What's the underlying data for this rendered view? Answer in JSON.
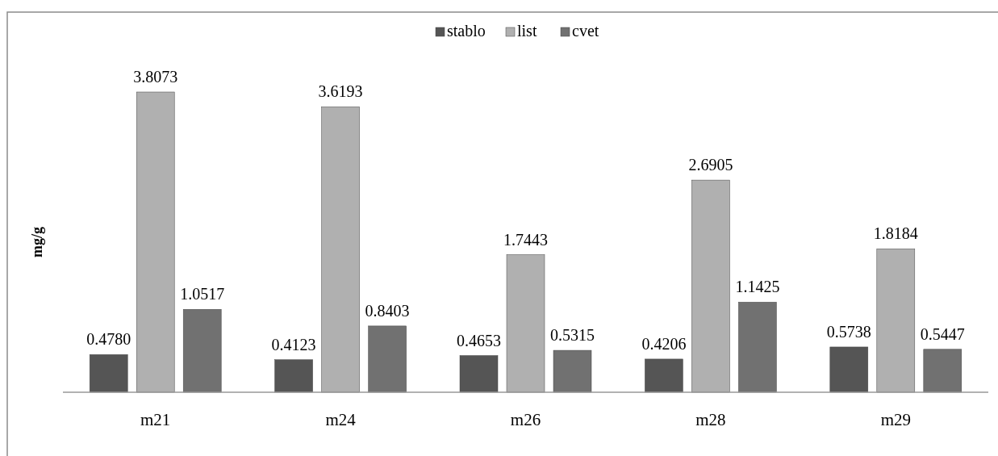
{
  "chart_data": {
    "type": "bar",
    "ylabel": "mg/g",
    "categories": [
      "m21",
      "m24",
      "m26",
      "m28",
      "m29"
    ],
    "series": [
      {
        "name": "stablo",
        "color": "#555555",
        "values": [
          0.478,
          0.4123,
          0.4653,
          0.4206,
          0.5738
        ],
        "value_labels": [
          "0.4780",
          "0.4123",
          "0.4653",
          "0.4206",
          "0.5738"
        ]
      },
      {
        "name": "list",
        "color": "#b0b0b0",
        "values": [
          3.8073,
          3.6193,
          1.7443,
          2.6905,
          1.8184
        ],
        "value_labels": [
          "3.8073",
          "3.6193",
          "1.7443",
          "2.6905",
          "1.8184"
        ]
      },
      {
        "name": "cvet",
        "color": "#717171",
        "values": [
          1.0517,
          0.8403,
          0.5315,
          1.1425,
          0.5447
        ],
        "value_labels": [
          "1.0517",
          "0.8403",
          "0.5315",
          "1.1425",
          "0.5447"
        ]
      }
    ],
    "legend": "top"
  }
}
